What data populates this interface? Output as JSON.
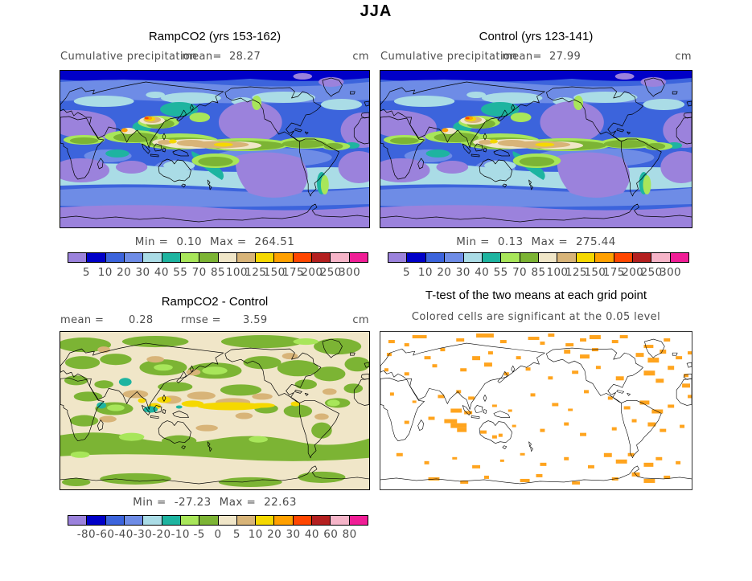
{
  "title": "JJA",
  "panels": {
    "ramp": {
      "title": "RampCO2 (yrs 153-162)",
      "measure_label": "Cumulative precipitation",
      "mean_label": "mean=",
      "mean_value": "28.27",
      "units": "cm",
      "min_label": "Min =",
      "min_value": "0.10",
      "max_label": "Max =",
      "max_value": "264.51"
    },
    "control": {
      "title": "Control (yrs 123-141)",
      "measure_label": "Cumulative precipitation",
      "mean_label": "mean=",
      "mean_value": "27.99",
      "units": "cm",
      "min_label": "Min =",
      "min_value": "0.13",
      "max_label": "Max =",
      "max_value": "275.44"
    },
    "diff": {
      "title": "RampCO2 - Control",
      "mean_label": "mean =",
      "mean_value": "0.28",
      "rmse_label": "rmse =",
      "rmse_value": "3.59",
      "units": "cm",
      "min_label": "Min =",
      "min_value": "-27.23",
      "max_label": "Max =",
      "max_value": "22.63"
    },
    "ttest": {
      "title": "T-test of the two means at each grid point",
      "subtitle": "Colored cells are significant at the 0.05 level"
    }
  },
  "colorbar": {
    "colors": [
      "#9b82dc",
      "#0000c8",
      "#3c64dc",
      "#6e8ce6",
      "#aadce6",
      "#1eb4a0",
      "#a8e65a",
      "#7cb434",
      "#f0e6c8",
      "#d8b478",
      "#f5d800",
      "#ffa000",
      "#ff4600",
      "#b42020",
      "#f5b4c8",
      "#f01e96"
    ],
    "precip_ticks": [
      "5",
      "10",
      "20",
      "30",
      "40",
      "55",
      "70",
      "85",
      "100",
      "125",
      "150",
      "175",
      "200",
      "250",
      "300"
    ],
    "diff_ticks": [
      "-80",
      "-60",
      "-40",
      "-30",
      "-20",
      "-10",
      "-5",
      "0",
      "5",
      "10",
      "20",
      "30",
      "40",
      "60",
      "80"
    ],
    "ttest_significant_color": "#ffa41e"
  },
  "chart_data": [
    {
      "type": "heatmap",
      "subtype": "filled-contour global map, Pacific-centered (lon 0-360)",
      "title": "RampCO2 (yrs 153-162)",
      "variable": "Cumulative precipitation",
      "season": "JJA",
      "units": "cm",
      "stats": {
        "mean": 28.27,
        "min": 0.1,
        "max": 264.51
      },
      "levels": [
        5,
        10,
        20,
        30,
        40,
        55,
        70,
        85,
        100,
        125,
        150,
        175,
        200,
        250,
        300
      ],
      "palette": [
        "#9b82dc",
        "#0000c8",
        "#3c64dc",
        "#6e8ce6",
        "#aadce6",
        "#1eb4a0",
        "#a8e65a",
        "#7cb434",
        "#f0e6c8",
        "#d8b478",
        "#f5d800",
        "#ffa000",
        "#ff4600",
        "#b42020",
        "#f5b4c8",
        "#f01e96"
      ],
      "legend_position": "bottom"
    },
    {
      "type": "heatmap",
      "subtype": "filled-contour global map, Pacific-centered (lon 0-360)",
      "title": "Control (yrs 123-141)",
      "variable": "Cumulative precipitation",
      "season": "JJA",
      "units": "cm",
      "stats": {
        "mean": 27.99,
        "min": 0.13,
        "max": 275.44
      },
      "levels": [
        5,
        10,
        20,
        30,
        40,
        55,
        70,
        85,
        100,
        125,
        150,
        175,
        200,
        250,
        300
      ],
      "palette": [
        "#9b82dc",
        "#0000c8",
        "#3c64dc",
        "#6e8ce6",
        "#aadce6",
        "#1eb4a0",
        "#a8e65a",
        "#7cb434",
        "#f0e6c8",
        "#d8b478",
        "#f5d800",
        "#ffa000",
        "#ff4600",
        "#b42020",
        "#f5b4c8",
        "#f01e96"
      ],
      "legend_position": "bottom"
    },
    {
      "type": "heatmap",
      "subtype": "filled-contour global difference map",
      "title": "RampCO2 - Control",
      "season": "JJA",
      "units": "cm",
      "stats": {
        "mean": 0.28,
        "rmse": 3.59,
        "min": -27.23,
        "max": 22.63
      },
      "levels": [
        -80,
        -60,
        -40,
        -30,
        -20,
        -10,
        -5,
        0,
        5,
        10,
        20,
        30,
        40,
        60,
        80
      ],
      "palette": [
        "#9b82dc",
        "#0000c8",
        "#3c64dc",
        "#6e8ce6",
        "#aadce6",
        "#1eb4a0",
        "#a8e65a",
        "#7cb434",
        "#f0e6c8",
        "#d8b478",
        "#f5d800",
        "#ffa000",
        "#ff4600",
        "#b42020",
        "#f5b4c8",
        "#f01e96"
      ],
      "legend_position": "bottom"
    },
    {
      "type": "heatmap",
      "subtype": "significance mask map",
      "title": "T-test of the two means at each grid point",
      "note": "Colored cells are significant at the 0.05 level",
      "significance_level": 0.05,
      "significant_color": "#ffa41e",
      "background": "#ffffff"
    }
  ]
}
